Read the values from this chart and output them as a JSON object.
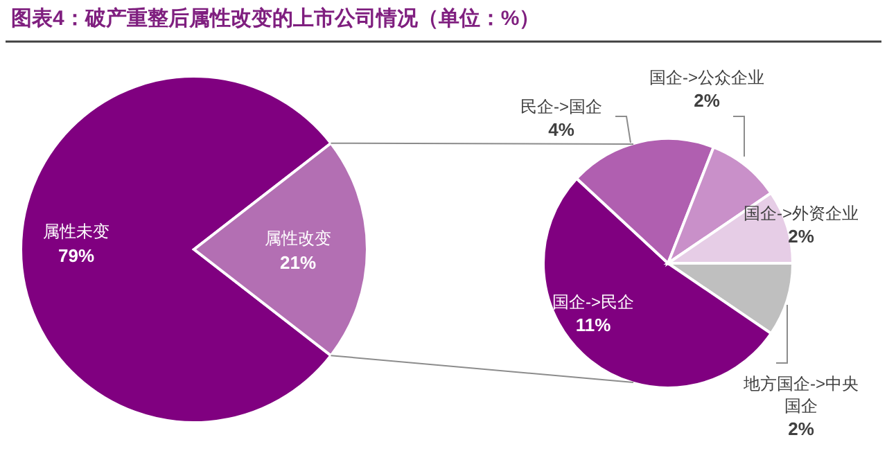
{
  "chart_data": [
    {
      "type": "pie",
      "title": "图表4：破产重整后属性改变的上市公司情况（单位：%）",
      "categories": [
        "属性未变",
        "属性改变"
      ],
      "values": [
        79,
        21
      ],
      "colors": [
        "#800080",
        "#b36fb3"
      ],
      "value_labels": [
        "79%",
        "21%"
      ]
    },
    {
      "type": "pie",
      "categories": [
        "地方国企->中央国企",
        "国企->民企",
        "民企->国企",
        "国企->公众企业",
        "国企->外资企业"
      ],
      "values": [
        2,
        11,
        4,
        2,
        2
      ],
      "colors": [
        "#bfbfbf",
        "#800080",
        "#b05fb0",
        "#c990c9",
        "#e6cde6"
      ],
      "value_labels": [
        "2%",
        "11%",
        "4%",
        "2%",
        "2%"
      ]
    }
  ]
}
